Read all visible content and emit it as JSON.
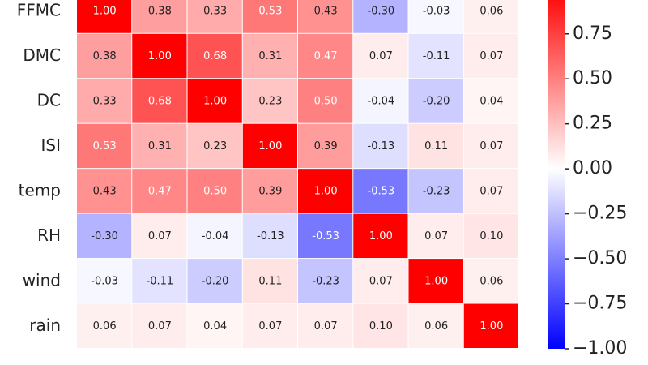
{
  "chart_data": {
    "type": "heatmap",
    "y_categories": [
      "FFMC",
      "DMC",
      "DC",
      "ISI",
      "temp",
      "RH",
      "wind",
      "rain"
    ],
    "values": [
      [
        1.0,
        0.38,
        0.33,
        0.53,
        0.43,
        -0.3,
        -0.03,
        0.06
      ],
      [
        0.38,
        1.0,
        0.68,
        0.31,
        0.47,
        0.07,
        -0.11,
        0.07
      ],
      [
        0.33,
        0.68,
        1.0,
        0.23,
        0.5,
        -0.04,
        -0.2,
        0.04
      ],
      [
        0.53,
        0.31,
        0.23,
        1.0,
        0.39,
        -0.13,
        0.11,
        0.07
      ],
      [
        0.43,
        0.47,
        0.5,
        0.39,
        1.0,
        -0.53,
        -0.23,
        0.07
      ],
      [
        -0.3,
        0.07,
        -0.04,
        -0.13,
        -0.53,
        1.0,
        0.07,
        0.1
      ],
      [
        -0.03,
        -0.11,
        -0.2,
        0.11,
        -0.23,
        0.07,
        1.0,
        0.06
      ],
      [
        0.06,
        0.07,
        0.04,
        0.07,
        0.07,
        0.1,
        0.06,
        1.0
      ]
    ],
    "value_labels": [
      [
        "1.00",
        "0.38",
        "0.33",
        "0.53",
        "0.43",
        "-0.30",
        "-0.03",
        "0.06"
      ],
      [
        "0.38",
        "1.00",
        "0.68",
        "0.31",
        "0.47",
        "0.07",
        "-0.11",
        "0.07"
      ],
      [
        "0.33",
        "0.68",
        "1.00",
        "0.23",
        "0.50",
        "-0.04",
        "-0.20",
        "0.04"
      ],
      [
        "0.53",
        "0.31",
        "0.23",
        "1.00",
        "0.39",
        "-0.13",
        "0.11",
        "0.07"
      ],
      [
        "0.43",
        "0.47",
        "0.50",
        "0.39",
        "1.00",
        "-0.53",
        "-0.23",
        "0.07"
      ],
      [
        "-0.30",
        "0.07",
        "-0.04",
        "-0.13",
        "-0.53",
        "1.00",
        "0.07",
        "0.10"
      ],
      [
        "-0.03",
        "-0.11",
        "-0.20",
        "0.11",
        "-0.23",
        "0.07",
        "1.00",
        "0.06"
      ],
      [
        "0.06",
        "0.07",
        "0.04",
        "0.07",
        "0.07",
        "0.10",
        "0.06",
        "1.00"
      ]
    ],
    "colormap": "bwr",
    "vlim": [
      -1,
      1
    ],
    "colorbar_ticks": [
      {
        "value": 0.75,
        "label": "0.75"
      },
      {
        "value": 0.5,
        "label": "0.50"
      },
      {
        "value": 0.25,
        "label": "0.25"
      },
      {
        "value": 0,
        "label": "0.00"
      },
      {
        "value": -0.25,
        "label": "−0.25"
      },
      {
        "value": -0.5,
        "label": "−0.50"
      },
      {
        "value": -0.75,
        "label": "−0.75"
      },
      {
        "value": -1,
        "label": "−1.00"
      }
    ]
  }
}
